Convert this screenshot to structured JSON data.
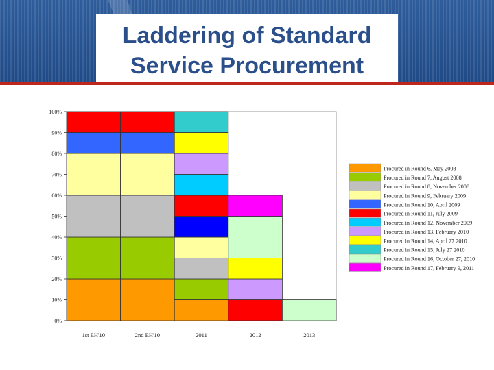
{
  "slide": {
    "title_line1": "Laddering of Standard",
    "title_line2": "Service Procurement"
  },
  "chart_data": {
    "type": "bar",
    "stacked": true,
    "categories": [
      "1st EH'10",
      "2nd EH'10",
      "2011",
      "2012",
      "2013"
    ],
    "yticks": [
      "0%",
      "10%",
      "20%",
      "30%",
      "40%",
      "50%",
      "60%",
      "70%",
      "80%",
      "90%",
      "100%"
    ],
    "ylim": [
      0,
      100
    ],
    "legend_position": "right",
    "series": [
      {
        "name": "Procured in Round 6, May 2008",
        "color": "#ff9900",
        "values": [
          20,
          20,
          10,
          0,
          0
        ]
      },
      {
        "name": "Procured in Round 7, August 2008",
        "color": "#99cc00",
        "values": [
          20,
          20,
          10,
          0,
          0
        ]
      },
      {
        "name": "Procured in Round 8, November 2008",
        "color": "#c0c0c0",
        "values": [
          20,
          20,
          10,
          0,
          0
        ]
      },
      {
        "name": "Procured in Round 9, February 2009",
        "color": "#ffffa0",
        "values": [
          20,
          20,
          10,
          0,
          0
        ]
      },
      {
        "name": "Procured in Round 10, April 2009",
        "color": "#3366ff",
        "values": [
          10,
          10,
          0,
          0,
          0
        ]
      },
      {
        "name": "Procured in Round 11, July 2009",
        "color": "#ff0000",
        "values": [
          10,
          10,
          10,
          10,
          0
        ]
      },
      {
        "name": "Procured in Round 12, November 2009",
        "color": "#00ccff",
        "values": [
          0,
          0,
          10,
          0,
          0
        ]
      },
      {
        "name": "Procured in Round 13, February 2010",
        "color": "#cc99ff",
        "values": [
          0,
          0,
          10,
          10,
          0
        ]
      },
      {
        "name": "Procured in Round 14, April 27 2010",
        "color": "#ffff00",
        "values": [
          0,
          0,
          10,
          10,
          0
        ]
      },
      {
        "name": "Procured in Round 15, July 27 2010",
        "color": "#33cccc",
        "values": [
          0,
          0,
          10,
          0,
          0
        ]
      },
      {
        "name": "Procured in Round 16, October 27, 2010",
        "color": "#ccffcc",
        "values": [
          0,
          0,
          0,
          20,
          10
        ]
      },
      {
        "name": "Procured in Round 17, February 9, 2011",
        "color": "#ff00ff",
        "values": [
          0,
          0,
          0,
          10,
          0
        ]
      },
      {
        "name": "",
        "color": "#0000ff",
        "values": [
          0,
          0,
          10,
          0,
          0
        ]
      }
    ],
    "stacks": [
      [
        "Procured in Round 6, May 2008",
        "Procured in Round 7, August 2008",
        "Procured in Round 8, November 2008",
        "Procured in Round 9, February 2009",
        "Procured in Round 10, April 2009",
        "Procured in Round 11, July 2009"
      ],
      [
        "Procured in Round 6, May 2008",
        "Procured in Round 7, August 2008",
        "Procured in Round 8, November 2008",
        "Procured in Round 9, February 2009",
        "Procured in Round 10, April 2009",
        "Procured in Round 11, July 2009"
      ],
      [
        "Procured in Round 6, May 2008",
        "Procured in Round 7, August 2008",
        "Procured in Round 8, November 2008",
        "Procured in Round 9, February 2009",
        "",
        "Procured in Round 11, July 2009",
        "Procured in Round 12, November 2009",
        "Procured in Round 13, February 2010",
        "Procured in Round 14, April 27 2010",
        "Procured in Round 15, July 27 2010"
      ],
      [
        "Procured in Round 11, July 2009",
        "Procured in Round 13, February 2010",
        "Procured in Round 14, April 27 2010",
        "Procured in Round 16, October 27, 2010",
        "Procured in Round 17, February 9, 2011"
      ],
      [
        "Procured in Round 16, October 27, 2010"
      ]
    ]
  }
}
